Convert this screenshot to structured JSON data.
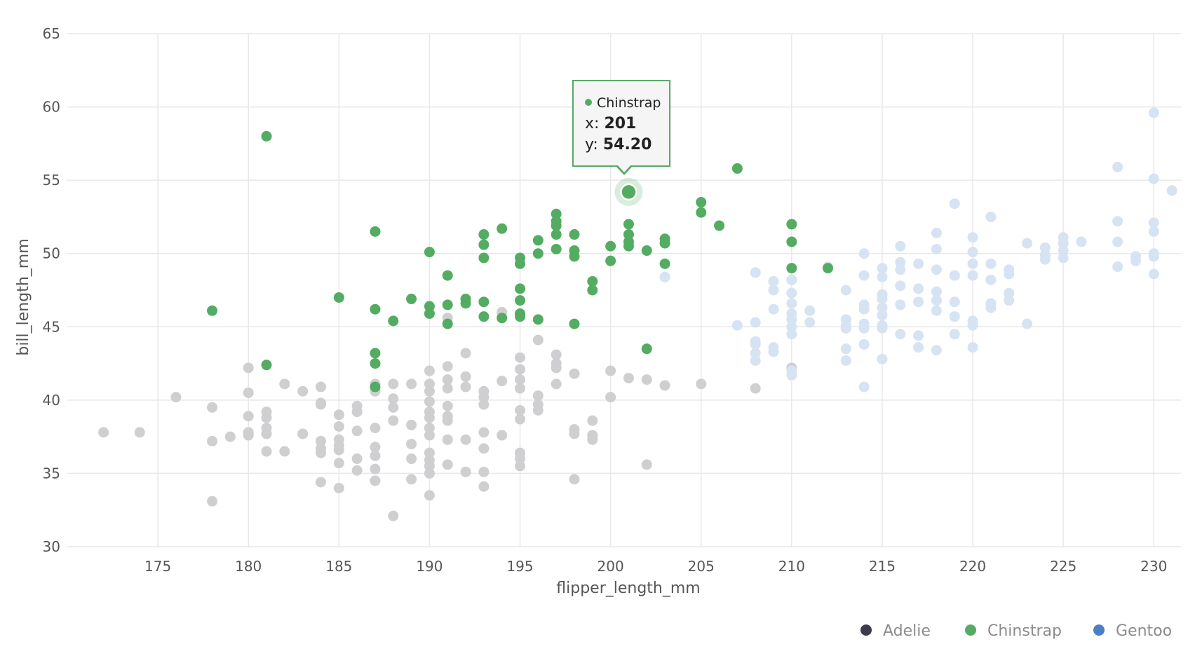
{
  "chart_data": {
    "type": "scatter",
    "xlabel": "flipper_length_mm",
    "ylabel": "bill_length_mm",
    "xlim": [
      170,
      231.5
    ],
    "ylim": [
      30,
      65
    ],
    "x_ticks": [
      175,
      180,
      185,
      190,
      195,
      200,
      205,
      210,
      215,
      220,
      225,
      230
    ],
    "y_ticks": [
      30,
      35,
      40,
      45,
      50,
      55,
      60,
      65
    ],
    "grid": true,
    "legend_position": "bottom-right",
    "highlighted_series": "Chinstrap",
    "series": [
      {
        "name": "Adelie",
        "color": "#3b3a4f",
        "faded_color": "#cfcfd2",
        "points": [
          [
            172,
            37.8
          ],
          [
            174,
            37.8
          ],
          [
            176,
            40.2
          ],
          [
            178,
            39.5
          ],
          [
            178,
            37.2
          ],
          [
            178,
            33.1
          ],
          [
            179,
            37.5
          ],
          [
            180,
            42.2
          ],
          [
            180,
            40.5
          ],
          [
            180,
            38.9
          ],
          [
            180,
            37.8
          ],
          [
            180,
            37.6
          ],
          [
            181,
            39.2
          ],
          [
            181,
            38.8
          ],
          [
            181,
            38.1
          ],
          [
            181,
            37.7
          ],
          [
            181,
            36.5
          ],
          [
            182,
            41.1
          ],
          [
            182,
            36.5
          ],
          [
            183,
            40.6
          ],
          [
            183,
            37.7
          ],
          [
            184,
            40.9
          ],
          [
            184,
            39.8
          ],
          [
            184,
            39.7
          ],
          [
            184,
            37.2
          ],
          [
            184,
            36.7
          ],
          [
            184,
            36.4
          ],
          [
            184,
            34.4
          ],
          [
            185,
            39.0
          ],
          [
            185,
            38.2
          ],
          [
            185,
            37.3
          ],
          [
            185,
            36.9
          ],
          [
            185,
            36.6
          ],
          [
            185,
            35.7
          ],
          [
            185,
            34.0
          ],
          [
            186,
            39.6
          ],
          [
            186,
            39.2
          ],
          [
            186,
            37.9
          ],
          [
            186,
            36.0
          ],
          [
            186,
            35.2
          ],
          [
            187,
            41.1
          ],
          [
            187,
            40.6
          ],
          [
            187,
            38.1
          ],
          [
            187,
            36.8
          ],
          [
            187,
            36.2
          ],
          [
            187,
            35.3
          ],
          [
            187,
            34.5
          ],
          [
            188,
            41.1
          ],
          [
            188,
            40.1
          ],
          [
            188,
            39.5
          ],
          [
            188,
            38.6
          ],
          [
            188,
            32.1
          ],
          [
            189,
            41.1
          ],
          [
            189,
            38.3
          ],
          [
            189,
            37.0
          ],
          [
            189,
            36.0
          ],
          [
            189,
            34.6
          ],
          [
            190,
            42.0
          ],
          [
            190,
            41.1
          ],
          [
            190,
            40.6
          ],
          [
            190,
            39.9
          ],
          [
            190,
            39.2
          ],
          [
            190,
            38.8
          ],
          [
            190,
            38.1
          ],
          [
            190,
            37.6
          ],
          [
            190,
            36.4
          ],
          [
            190,
            35.9
          ],
          [
            190,
            35.5
          ],
          [
            190,
            35.0
          ],
          [
            190,
            33.5
          ],
          [
            191,
            45.6
          ],
          [
            191,
            42.3
          ],
          [
            191,
            41.4
          ],
          [
            191,
            40.8
          ],
          [
            191,
            39.6
          ],
          [
            191,
            38.9
          ],
          [
            191,
            38.6
          ],
          [
            191,
            37.3
          ],
          [
            191,
            35.6
          ],
          [
            192,
            43.2
          ],
          [
            192,
            41.6
          ],
          [
            192,
            40.9
          ],
          [
            192,
            37.3
          ],
          [
            192,
            35.1
          ],
          [
            193,
            40.6
          ],
          [
            193,
            40.2
          ],
          [
            193,
            39.7
          ],
          [
            193,
            37.8
          ],
          [
            193,
            36.7
          ],
          [
            193,
            35.1
          ],
          [
            193,
            34.1
          ],
          [
            194,
            46.0
          ],
          [
            194,
            41.3
          ],
          [
            194,
            37.6
          ],
          [
            195,
            42.9
          ],
          [
            195,
            42.1
          ],
          [
            195,
            41.4
          ],
          [
            195,
            40.8
          ],
          [
            195,
            39.3
          ],
          [
            195,
            38.7
          ],
          [
            195,
            36.4
          ],
          [
            195,
            36.0
          ],
          [
            195,
            35.5
          ],
          [
            196,
            44.1
          ],
          [
            196,
            40.3
          ],
          [
            196,
            39.7
          ],
          [
            196,
            39.3
          ],
          [
            197,
            43.1
          ],
          [
            197,
            42.5
          ],
          [
            197,
            42.2
          ],
          [
            197,
            41.1
          ],
          [
            198,
            41.8
          ],
          [
            198,
            38.0
          ],
          [
            198,
            37.7
          ],
          [
            198,
            34.6
          ],
          [
            199,
            38.6
          ],
          [
            199,
            37.6
          ],
          [
            199,
            37.3
          ],
          [
            200,
            42.0
          ],
          [
            200,
            40.2
          ],
          [
            201,
            41.5
          ],
          [
            202,
            41.4
          ],
          [
            202,
            35.6
          ],
          [
            203,
            41.0
          ],
          [
            205,
            41.1
          ],
          [
            208,
            40.8
          ],
          [
            210,
            42.2
          ]
        ]
      },
      {
        "name": "Chinstrap",
        "color": "#53ac62",
        "points": [
          [
            178,
            46.1
          ],
          [
            181,
            58.0
          ],
          [
            181,
            42.4
          ],
          [
            185,
            47.0
          ],
          [
            187,
            51.5
          ],
          [
            187,
            46.2
          ],
          [
            187,
            43.2
          ],
          [
            187,
            42.5
          ],
          [
            187,
            40.9
          ],
          [
            188,
            45.4
          ],
          [
            189,
            46.9
          ],
          [
            190,
            50.1
          ],
          [
            190,
            46.4
          ],
          [
            190,
            45.9
          ],
          [
            191,
            48.5
          ],
          [
            191,
            46.5
          ],
          [
            191,
            45.2
          ],
          [
            192,
            46.9
          ],
          [
            192,
            46.6
          ],
          [
            193,
            51.3
          ],
          [
            193,
            50.6
          ],
          [
            193,
            49.7
          ],
          [
            193,
            46.7
          ],
          [
            193,
            45.7
          ],
          [
            194,
            51.7
          ],
          [
            194,
            45.6
          ],
          [
            195,
            49.7
          ],
          [
            195,
            49.3
          ],
          [
            195,
            47.6
          ],
          [
            195,
            46.8
          ],
          [
            195,
            45.9
          ],
          [
            195,
            45.7
          ],
          [
            196,
            50.9
          ],
          [
            196,
            50.0
          ],
          [
            196,
            45.5
          ],
          [
            197,
            52.7
          ],
          [
            197,
            52.2
          ],
          [
            197,
            51.9
          ],
          [
            197,
            51.3
          ],
          [
            197,
            50.3
          ],
          [
            198,
            51.3
          ],
          [
            198,
            50.2
          ],
          [
            198,
            49.8
          ],
          [
            198,
            45.2
          ],
          [
            199,
            48.1
          ],
          [
            199,
            47.5
          ],
          [
            200,
            50.5
          ],
          [
            200,
            49.5
          ],
          [
            201,
            54.2
          ],
          [
            201,
            52.0
          ],
          [
            201,
            51.3
          ],
          [
            201,
            50.8
          ],
          [
            201,
            50.5
          ],
          [
            202,
            50.2
          ],
          [
            202,
            43.5
          ],
          [
            203,
            51.0
          ],
          [
            203,
            50.7
          ],
          [
            203,
            49.3
          ],
          [
            205,
            53.5
          ],
          [
            205,
            52.8
          ],
          [
            206,
            51.9
          ],
          [
            207,
            55.8
          ],
          [
            210,
            52.0
          ],
          [
            210,
            50.8
          ],
          [
            210,
            49.0
          ],
          [
            212,
            49.0
          ]
        ]
      },
      {
        "name": "Gentoo",
        "color": "#4c7fc3",
        "faded_color": "#d6e3f3",
        "points": [
          [
            203,
            48.4
          ],
          [
            207,
            45.1
          ],
          [
            208,
            48.7
          ],
          [
            208,
            45.3
          ],
          [
            208,
            44.0
          ],
          [
            208,
            43.8
          ],
          [
            208,
            43.2
          ],
          [
            208,
            42.7
          ],
          [
            209,
            48.1
          ],
          [
            209,
            47.5
          ],
          [
            209,
            46.2
          ],
          [
            209,
            43.6
          ],
          [
            209,
            43.3
          ],
          [
            210,
            48.2
          ],
          [
            210,
            47.3
          ],
          [
            210,
            46.6
          ],
          [
            210,
            45.9
          ],
          [
            210,
            45.5
          ],
          [
            210,
            45.0
          ],
          [
            210,
            44.5
          ],
          [
            210,
            42.0
          ],
          [
            210,
            41.7
          ],
          [
            211,
            46.1
          ],
          [
            211,
            45.3
          ],
          [
            212,
            49.1
          ],
          [
            213,
            47.5
          ],
          [
            213,
            45.5
          ],
          [
            213,
            45.1
          ],
          [
            213,
            44.9
          ],
          [
            213,
            43.5
          ],
          [
            213,
            42.7
          ],
          [
            214,
            50.0
          ],
          [
            214,
            48.5
          ],
          [
            214,
            46.5
          ],
          [
            214,
            46.2
          ],
          [
            214,
            45.2
          ],
          [
            214,
            44.9
          ],
          [
            214,
            43.8
          ],
          [
            214,
            40.9
          ],
          [
            215,
            49.0
          ],
          [
            215,
            48.4
          ],
          [
            215,
            47.2
          ],
          [
            215,
            46.9
          ],
          [
            215,
            46.3
          ],
          [
            215,
            45.8
          ],
          [
            215,
            45.1
          ],
          [
            215,
            44.9
          ],
          [
            215,
            42.8
          ],
          [
            216,
            50.5
          ],
          [
            216,
            49.4
          ],
          [
            216,
            48.9
          ],
          [
            216,
            47.8
          ],
          [
            216,
            46.5
          ],
          [
            216,
            44.5
          ],
          [
            217,
            49.3
          ],
          [
            217,
            47.6
          ],
          [
            217,
            46.7
          ],
          [
            217,
            44.4
          ],
          [
            217,
            43.6
          ],
          [
            218,
            51.4
          ],
          [
            218,
            50.3
          ],
          [
            218,
            48.9
          ],
          [
            218,
            47.4
          ],
          [
            218,
            46.8
          ],
          [
            218,
            46.1
          ],
          [
            218,
            43.4
          ],
          [
            219,
            53.4
          ],
          [
            219,
            48.5
          ],
          [
            219,
            46.7
          ],
          [
            219,
            45.7
          ],
          [
            219,
            44.5
          ],
          [
            220,
            51.1
          ],
          [
            220,
            50.1
          ],
          [
            220,
            49.3
          ],
          [
            220,
            48.5
          ],
          [
            220,
            45.4
          ],
          [
            220,
            45.1
          ],
          [
            220,
            43.6
          ],
          [
            221,
            52.5
          ],
          [
            221,
            49.3
          ],
          [
            221,
            48.2
          ],
          [
            221,
            46.6
          ],
          [
            221,
            46.3
          ],
          [
            222,
            48.9
          ],
          [
            222,
            48.6
          ],
          [
            222,
            47.3
          ],
          [
            222,
            46.8
          ],
          [
            223,
            50.7
          ],
          [
            223,
            45.2
          ],
          [
            224,
            50.4
          ],
          [
            224,
            49.9
          ],
          [
            224,
            49.6
          ],
          [
            225,
            51.1
          ],
          [
            225,
            50.7
          ],
          [
            225,
            50.2
          ],
          [
            225,
            49.7
          ],
          [
            226,
            50.8
          ],
          [
            228,
            55.9
          ],
          [
            228,
            52.2
          ],
          [
            228,
            50.8
          ],
          [
            228,
            49.1
          ],
          [
            229,
            49.8
          ],
          [
            229,
            49.5
          ],
          [
            230,
            59.6
          ],
          [
            230,
            55.1
          ],
          [
            230,
            52.1
          ],
          [
            230,
            51.5
          ],
          [
            230,
            50.0
          ],
          [
            230,
            49.8
          ],
          [
            230,
            48.6
          ],
          [
            231,
            54.3
          ]
        ]
      }
    ],
    "tooltip": {
      "series": "Chinstrap",
      "x_prefix": "x: ",
      "x_value": "201",
      "y_prefix": "y: ",
      "y_value": "54.20",
      "point": [
        201,
        54.2
      ]
    }
  }
}
